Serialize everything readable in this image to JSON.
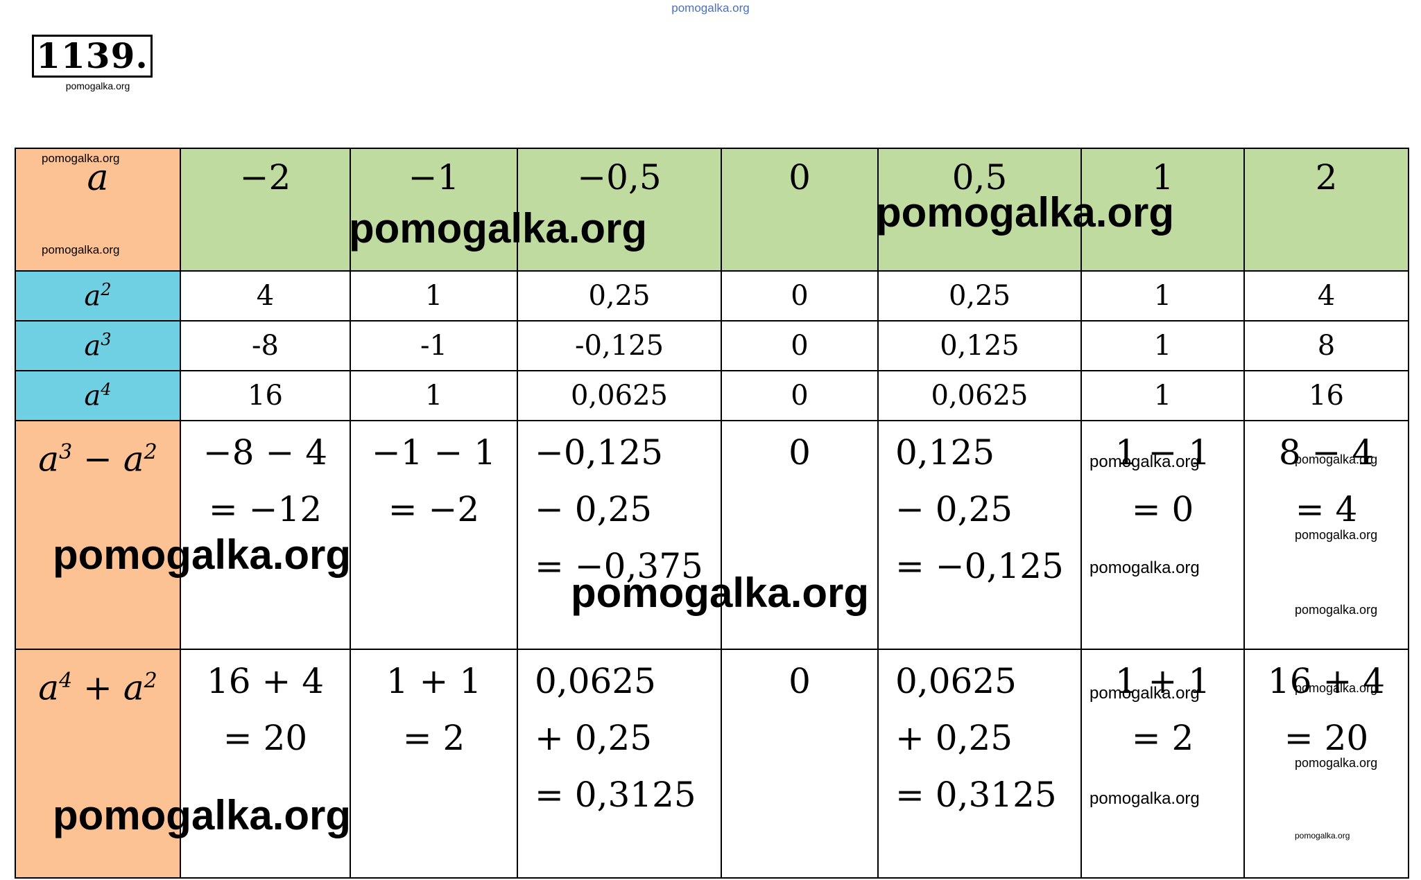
{
  "watermark": "pomogalka.org",
  "problem_number": "1139.",
  "header": {
    "label": "a",
    "values": [
      "−2",
      "−1",
      "−0,5",
      "0",
      "0,5",
      "1",
      "2"
    ]
  },
  "rows": [
    {
      "label_base": "a",
      "label_exp": "2",
      "values": [
        "4",
        "1",
        "0,25",
        "0",
        "0,25",
        "1",
        "4"
      ]
    },
    {
      "label_base": "a",
      "label_exp": "3",
      "values": [
        "-8",
        "-1",
        "-0,125",
        "0",
        "0,125",
        "1",
        "8"
      ]
    },
    {
      "label_base": "a",
      "label_exp": "4",
      "values": [
        "16",
        "1",
        "0,0625",
        "0",
        "0,0625",
        "1",
        "16"
      ]
    }
  ],
  "diff_row": {
    "label_a": "a",
    "label_e1": "3",
    "label_op": " − ",
    "label_b": "a",
    "label_e2": "2",
    "cells": [
      [
        "−8 − 4",
        "= −12"
      ],
      [
        "−1 − 1",
        "= −2"
      ],
      [
        "−0,125",
        "− 0,25",
        "= −0,375"
      ],
      [
        "0"
      ],
      [
        "0,125",
        "− 0,25",
        "= −0,125"
      ],
      [
        "1 − 1",
        "= 0"
      ],
      [
        "8 − 4",
        "= 4"
      ]
    ]
  },
  "sum_row": {
    "label_a": "a",
    "label_e1": "4",
    "label_op": " + ",
    "label_b": "a",
    "label_e2": "2",
    "cells": [
      [
        "16 + 4",
        "= 20"
      ],
      [
        "1 + 1",
        "= 2"
      ],
      [
        "0,0625",
        "+ 0,25",
        "=  0,3125"
      ],
      [
        "0"
      ],
      [
        "0,0625",
        "+ 0,25",
        "=  0,3125"
      ],
      [
        "1 + 1",
        "= 2"
      ],
      [
        "16 + 4",
        "= 20"
      ]
    ]
  }
}
